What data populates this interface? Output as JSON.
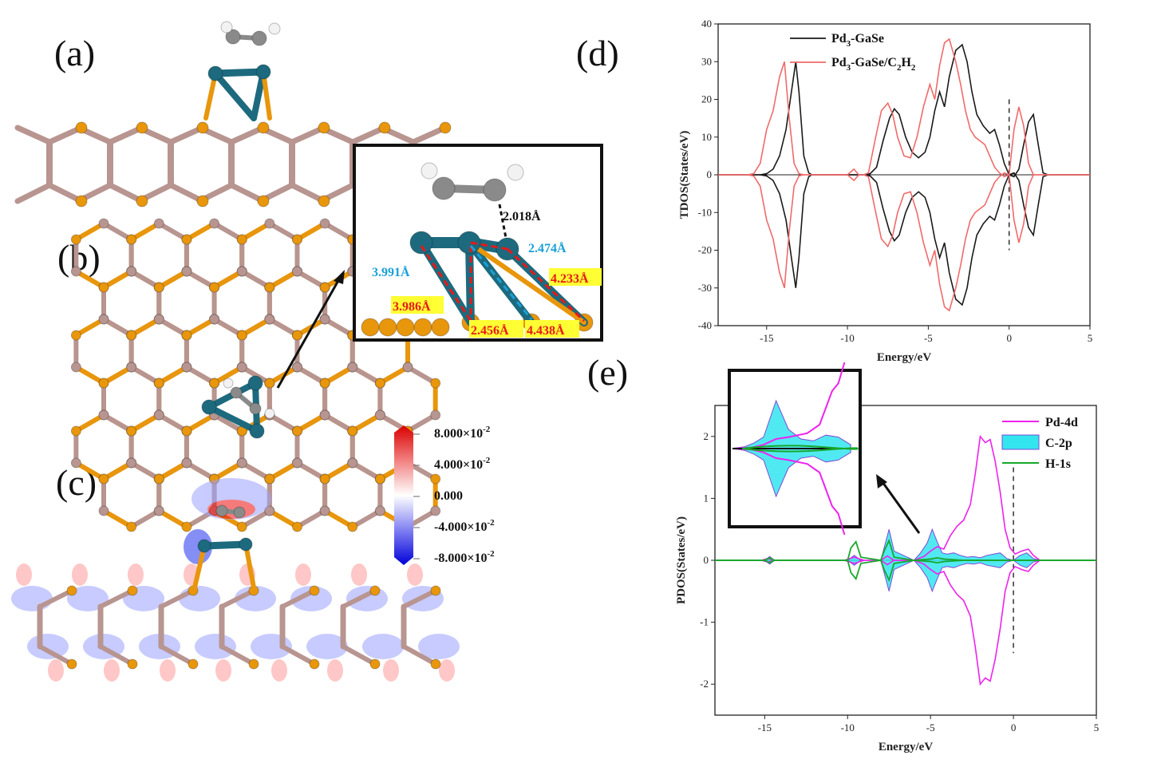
{
  "panels": {
    "a": "(a)",
    "b": "(b)",
    "c": "(c)",
    "d": "(d)",
    "e": "(e)"
  },
  "colors": {
    "ga": "#b89590",
    "se": "#e8960c",
    "pd": "#1d6a7e",
    "c_atom": "#8a8a8a",
    "h_atom": "#f2f2f2",
    "black_line": "#1a1a1a",
    "red_line": "#f06a6a",
    "pd4d": "#ee22ee",
    "c2p": "#33e5ee",
    "h1s": "#17a82a",
    "bond_cyan": "#1aa0d8",
    "bond_red": "#e81818",
    "label_bg": "#ffff33"
  },
  "inset_b": {
    "labels": {
      "l2018": "2.018Å",
      "l2474": "2.474Å",
      "l3991": "3.991Å",
      "l4233": "4.233Å",
      "l3986": "3.986Å",
      "l2456": "2.456Å",
      "l4438": "4.438Å"
    }
  },
  "colorbar": {
    "labels": [
      "8.000×10",
      "4.000×10",
      "0.000",
      "-4.000×10",
      "-8.000×10"
    ],
    "exponent": "-2"
  },
  "chart_data": [
    {
      "type": "line",
      "panel": "d",
      "xlabel": "Energy/eV",
      "ylabel": "TDOS(States/eV)",
      "xlim": [
        -18,
        5
      ],
      "ylim": [
        -40,
        40
      ],
      "xticks": [
        -15,
        -10,
        -5,
        0,
        5
      ],
      "yticks": [
        -40,
        -30,
        -20,
        -10,
        0,
        10,
        20,
        30,
        40
      ],
      "fermi_level": 0,
      "legend": [
        "Pd",
        "Pd"
      ],
      "series": [
        {
          "name": "Pd3-GaSe",
          "color": "#1a1a1a",
          "x": [
            -18,
            -15.4,
            -15.0,
            -14.6,
            -14.2,
            -13.8,
            -13.4,
            -13.2,
            -13.0,
            -12.7,
            -12.4,
            -12.2,
            -9.0,
            -8.6,
            -8.2,
            -7.8,
            -7.4,
            -7.1,
            -6.8,
            -6.4,
            -6.0,
            -5.6,
            -5.2,
            -4.9,
            -4.6,
            -4.3,
            -4.0,
            -3.7,
            -3.3,
            -2.9,
            -2.6,
            -2.3,
            -2.0,
            -1.6,
            -1.2,
            -0.9,
            -0.6,
            -0.3,
            0.0,
            0.3,
            0.6,
            0.9,
            1.2,
            1.5,
            1.8,
            2.1,
            2.4,
            5
          ],
          "y": [
            0,
            0,
            0.3,
            1.5,
            5,
            12,
            24,
            30,
            22,
            5,
            0.5,
            0,
            0,
            0.3,
            2,
            9,
            15,
            17.5,
            16,
            10,
            6,
            4.5,
            6,
            10,
            17,
            22,
            18,
            26,
            33,
            34.5,
            30,
            22,
            16,
            13,
            11,
            12,
            8,
            3,
            0,
            -0.5,
            1.5,
            8,
            14,
            16,
            8,
            0.5,
            0,
            0
          ]
        },
        {
          "name": "Pd3-GaSe/C2H2",
          "color": "#f06a6a",
          "x": [
            -18,
            -16.2,
            -15.8,
            -15.4,
            -15.0,
            -14.6,
            -14.2,
            -13.9,
            -13.6,
            -13.3,
            -13.0,
            -12.7,
            -10.0,
            -9.6,
            -9.3,
            -9.0,
            -8.7,
            -8.3,
            -7.9,
            -7.5,
            -7.2,
            -6.9,
            -6.5,
            -6.1,
            -5.7,
            -5.3,
            -4.9,
            -4.6,
            -4.3,
            -4.0,
            -3.7,
            -3.3,
            -3.0,
            -2.7,
            -2.4,
            -2.1,
            -1.8,
            -1.5,
            -1.2,
            -0.9,
            -0.6,
            -0.3,
            0.0,
            0.3,
            0.6,
            0.9,
            1.2,
            1.5,
            1.8,
            5
          ],
          "y": [
            0,
            0,
            0.3,
            3,
            12,
            17,
            26,
            30,
            15,
            3,
            0.3,
            0,
            0,
            1.5,
            0,
            0,
            0.5,
            9,
            17,
            19,
            16,
            10,
            5,
            4.5,
            10,
            18,
            24,
            20,
            29,
            35,
            36,
            30,
            24,
            17,
            12,
            10,
            9,
            8,
            5,
            2,
            0.5,
            -0.5,
            0,
            12,
            18,
            13,
            3,
            0,
            0,
            0
          ]
        }
      ]
    },
    {
      "type": "area",
      "panel": "e",
      "xlabel": "Energy/eV",
      "ylabel": "PDOS(States/eV)",
      "xlim": [
        -18,
        5
      ],
      "ylim": [
        -2.5,
        2.5
      ],
      "xticks": [
        -15,
        -10,
        -5,
        0,
        5
      ],
      "yticks": [
        -2,
        -1,
        0,
        1,
        2
      ],
      "fermi_level": 0,
      "legend": [
        "Pd-4d",
        "C-2p",
        "H-1s"
      ],
      "series": [
        {
          "name": "Pd-4d",
          "color": "#ee22ee",
          "x": [
            -18,
            -15.2,
            -14.8,
            -14.4,
            -13.0,
            -10.2,
            -9.6,
            -9.0,
            -8.0,
            -7.6,
            -7.2,
            -6.0,
            -5.4,
            -5.0,
            -4.6,
            -4.2,
            -3.8,
            -3.4,
            -3.0,
            -2.6,
            -2.3,
            -2.0,
            -1.7,
            -1.4,
            -1.1,
            -0.8,
            -0.5,
            -0.2,
            0.1,
            0.5,
            0.9,
            1.2,
            1.6,
            2.0,
            5
          ],
          "y": [
            0,
            0,
            0.03,
            0,
            0,
            0,
            0.05,
            0,
            0,
            0.07,
            0,
            0,
            0.06,
            0.15,
            0.22,
            0.18,
            0.4,
            0.55,
            0.65,
            0.9,
            1.4,
            2.0,
            1.9,
            1.95,
            1.6,
            1.1,
            0.5,
            0.2,
            0.1,
            0.15,
            0.18,
            0.08,
            0,
            0,
            0
          ]
        },
        {
          "name": "C-2p",
          "color": "#33e5ee",
          "x": [
            -18,
            -15.0,
            -14.7,
            -14.4,
            -13.0,
            -10.0,
            -9.6,
            -9.2,
            -8.0,
            -7.8,
            -7.5,
            -7.2,
            -6.0,
            -5.6,
            -5.2,
            -4.9,
            -4.6,
            -4.3,
            -4.0,
            -3.6,
            -3.2,
            -2.8,
            -2.4,
            -2.0,
            -1.6,
            -1.2,
            -0.8,
            -0.4,
            0.0,
            0.4,
            0.8,
            1.2,
            1.6,
            5
          ],
          "y": [
            0,
            0,
            0.06,
            0,
            0,
            0,
            0.08,
            0,
            0,
            0.2,
            0.5,
            0.15,
            0,
            0.12,
            0.28,
            0.5,
            0.3,
            0.12,
            0.1,
            0.12,
            0.08,
            0.05,
            0.06,
            0.04,
            0.08,
            0.1,
            0.12,
            0.03,
            0,
            0.08,
            0.12,
            0.03,
            0,
            0
          ]
        },
        {
          "name": "H-1s",
          "color": "#17a82a",
          "x": [
            -18,
            -15.0,
            -14.7,
            -14.4,
            -10.0,
            -9.8,
            -9.5,
            -9.2,
            -8.0,
            -7.8,
            -7.5,
            -7.2,
            -6.0,
            -5.0,
            -4.6,
            -4.2,
            -3.0,
            5
          ],
          "y": [
            0,
            0,
            0.04,
            0,
            0,
            0.2,
            0.3,
            0.05,
            0,
            0.15,
            0.32,
            0.05,
            0,
            0.02,
            0.04,
            0.02,
            0,
            0
          ]
        }
      ]
    }
  ]
}
